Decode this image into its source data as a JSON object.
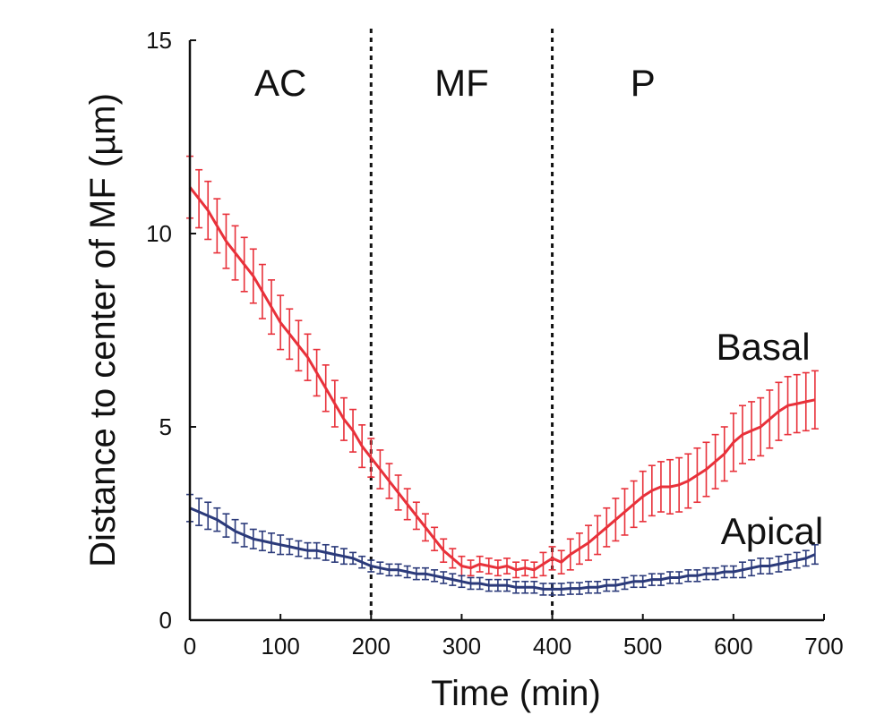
{
  "chart_data": {
    "type": "line",
    "title": "",
    "xlabel": "Time (min)",
    "ylabel": "Distance to center of MF (µm)",
    "xlim": [
      0,
      700
    ],
    "ylim": [
      0,
      15
    ],
    "xticks": [
      0,
      100,
      200,
      300,
      400,
      500,
      600,
      700
    ],
    "yticks": [
      0,
      5,
      10,
      15
    ],
    "xtick_labels": [
      "0",
      "100",
      "200",
      "300",
      "400",
      "500",
      "600",
      "700"
    ],
    "ytick_labels": [
      "0",
      "5",
      "10",
      "15"
    ],
    "grid": false,
    "legend": "inline labels at right",
    "phase_dividers": [
      200,
      400
    ],
    "regions": [
      {
        "label": "AC",
        "x": 100
      },
      {
        "label": "MF",
        "x": 300
      },
      {
        "label": "P",
        "x": 500
      }
    ],
    "series": [
      {
        "name": "Basal",
        "color": "#e8313a",
        "x": [
          0,
          10,
          20,
          30,
          40,
          50,
          60,
          70,
          80,
          90,
          100,
          110,
          120,
          130,
          140,
          150,
          160,
          170,
          180,
          190,
          200,
          210,
          220,
          230,
          240,
          250,
          260,
          270,
          280,
          290,
          300,
          310,
          320,
          330,
          340,
          350,
          360,
          370,
          380,
          390,
          400,
          410,
          420,
          430,
          440,
          450,
          460,
          470,
          480,
          490,
          500,
          510,
          520,
          530,
          540,
          550,
          560,
          570,
          580,
          590,
          600,
          610,
          620,
          630,
          640,
          650,
          660,
          670,
          680,
          690
        ],
        "values": [
          11.2,
          10.9,
          10.6,
          10.2,
          9.8,
          9.5,
          9.2,
          8.9,
          8.5,
          8.1,
          7.7,
          7.4,
          7.1,
          6.8,
          6.4,
          6.0,
          5.6,
          5.2,
          4.9,
          4.5,
          4.2,
          3.9,
          3.6,
          3.3,
          3.0,
          2.7,
          2.4,
          2.1,
          1.8,
          1.6,
          1.4,
          1.35,
          1.45,
          1.4,
          1.35,
          1.4,
          1.3,
          1.35,
          1.3,
          1.45,
          1.6,
          1.5,
          1.7,
          1.85,
          2.0,
          2.2,
          2.4,
          2.6,
          2.8,
          3.0,
          3.2,
          3.35,
          3.45,
          3.45,
          3.5,
          3.6,
          3.75,
          3.9,
          4.1,
          4.3,
          4.6,
          4.8,
          4.9,
          5.0,
          5.2,
          5.4,
          5.55,
          5.6,
          5.65,
          5.7
        ],
        "errors": [
          0.8,
          0.75,
          0.75,
          0.7,
          0.7,
          0.7,
          0.7,
          0.7,
          0.7,
          0.7,
          0.7,
          0.65,
          0.65,
          0.6,
          0.6,
          0.6,
          0.6,
          0.55,
          0.55,
          0.55,
          0.5,
          0.5,
          0.45,
          0.45,
          0.4,
          0.35,
          0.35,
          0.3,
          0.3,
          0.25,
          0.25,
          0.2,
          0.2,
          0.2,
          0.2,
          0.2,
          0.2,
          0.2,
          0.2,
          0.3,
          0.3,
          0.3,
          0.4,
          0.4,
          0.45,
          0.5,
          0.5,
          0.55,
          0.6,
          0.6,
          0.65,
          0.65,
          0.65,
          0.7,
          0.7,
          0.7,
          0.7,
          0.7,
          0.7,
          0.7,
          0.75,
          0.75,
          0.75,
          0.75,
          0.75,
          0.75,
          0.75,
          0.75,
          0.75,
          0.75
        ]
      },
      {
        "name": "Apical",
        "color": "#2b3a7a",
        "x": [
          0,
          10,
          20,
          30,
          40,
          50,
          60,
          70,
          80,
          90,
          100,
          110,
          120,
          130,
          140,
          150,
          160,
          170,
          180,
          190,
          200,
          210,
          220,
          230,
          240,
          250,
          260,
          270,
          280,
          290,
          300,
          310,
          320,
          330,
          340,
          350,
          360,
          370,
          380,
          390,
          400,
          410,
          420,
          430,
          440,
          450,
          460,
          470,
          480,
          490,
          500,
          510,
          520,
          530,
          540,
          550,
          560,
          570,
          580,
          590,
          600,
          610,
          620,
          630,
          640,
          650,
          660,
          670,
          680,
          690
        ],
        "values": [
          2.9,
          2.8,
          2.7,
          2.6,
          2.45,
          2.3,
          2.2,
          2.1,
          2.05,
          2.0,
          1.95,
          1.9,
          1.85,
          1.8,
          1.8,
          1.75,
          1.7,
          1.65,
          1.6,
          1.5,
          1.4,
          1.35,
          1.3,
          1.3,
          1.25,
          1.2,
          1.2,
          1.15,
          1.1,
          1.05,
          1.0,
          0.95,
          0.95,
          0.9,
          0.9,
          0.9,
          0.85,
          0.85,
          0.85,
          0.8,
          0.8,
          0.8,
          0.82,
          0.82,
          0.85,
          0.85,
          0.9,
          0.9,
          0.95,
          1.0,
          1.0,
          1.05,
          1.05,
          1.1,
          1.1,
          1.15,
          1.15,
          1.2,
          1.2,
          1.25,
          1.25,
          1.3,
          1.35,
          1.4,
          1.4,
          1.45,
          1.5,
          1.55,
          1.6,
          1.7
        ],
        "errors": [
          0.35,
          0.35,
          0.35,
          0.3,
          0.3,
          0.3,
          0.3,
          0.25,
          0.25,
          0.25,
          0.25,
          0.2,
          0.2,
          0.2,
          0.2,
          0.2,
          0.2,
          0.2,
          0.15,
          0.15,
          0.15,
          0.15,
          0.15,
          0.15,
          0.15,
          0.15,
          0.15,
          0.15,
          0.15,
          0.15,
          0.15,
          0.15,
          0.15,
          0.15,
          0.15,
          0.15,
          0.15,
          0.15,
          0.15,
          0.15,
          0.15,
          0.15,
          0.15,
          0.15,
          0.15,
          0.15,
          0.15,
          0.15,
          0.15,
          0.15,
          0.15,
          0.15,
          0.15,
          0.15,
          0.15,
          0.15,
          0.15,
          0.15,
          0.15,
          0.15,
          0.15,
          0.2,
          0.2,
          0.2,
          0.2,
          0.2,
          0.2,
          0.2,
          0.2,
          0.25
        ]
      }
    ]
  }
}
